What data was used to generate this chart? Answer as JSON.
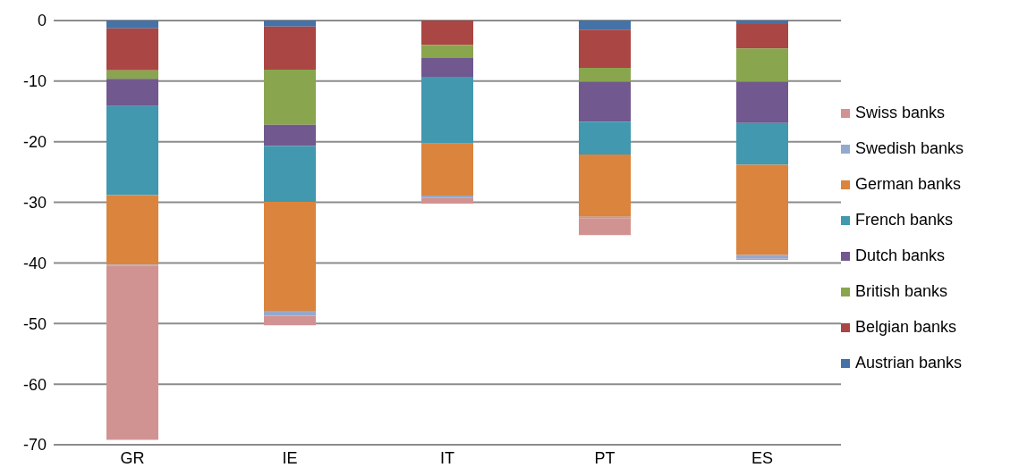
{
  "chart_data": {
    "type": "bar",
    "stacked": true,
    "categories": [
      "GR",
      "IE",
      "IT",
      "PT",
      "ES"
    ],
    "series": [
      {
        "name": "Austrian banks",
        "color": "#4572a7",
        "values": [
          -1.3,
          -1.0,
          null,
          -1.5,
          -0.6
        ]
      },
      {
        "name": "Belgian banks",
        "color": "#aa4643",
        "values": [
          -6.9,
          -7.1,
          -4.0,
          -6.3,
          -4.0
        ]
      },
      {
        "name": "British banks",
        "color": "#89a54e",
        "values": [
          -1.4,
          -9.1,
          -2.2,
          -2.3,
          -5.5
        ]
      },
      {
        "name": "Dutch banks",
        "color": "#71588f",
        "values": [
          -4.5,
          -3.5,
          -3.1,
          -6.6,
          -6.8
        ]
      },
      {
        "name": "French banks",
        "color": "#4198af",
        "values": [
          -14.7,
          -9.2,
          -11.0,
          -5.4,
          -6.9
        ]
      },
      {
        "name": "German banks",
        "color": "#db843d",
        "values": [
          -11.5,
          -18.0,
          -8.6,
          -10.3,
          -14.9
        ]
      },
      {
        "name": "Swedish banks",
        "color": "#93a9cf",
        "values": [
          -0.2,
          -0.8,
          -0.3,
          -0.2,
          -0.6
        ]
      },
      {
        "name": "Swiss banks",
        "color": "#d19392",
        "values": [
          -28.7,
          -1.6,
          -1.0,
          -2.8,
          -0.2
        ]
      }
    ],
    "ylim": [
      -70,
      0
    ],
    "yticks": [
      -70,
      -60,
      -50,
      -40,
      -30,
      -20,
      -10,
      0
    ],
    "grid": "y",
    "legend": "right"
  }
}
